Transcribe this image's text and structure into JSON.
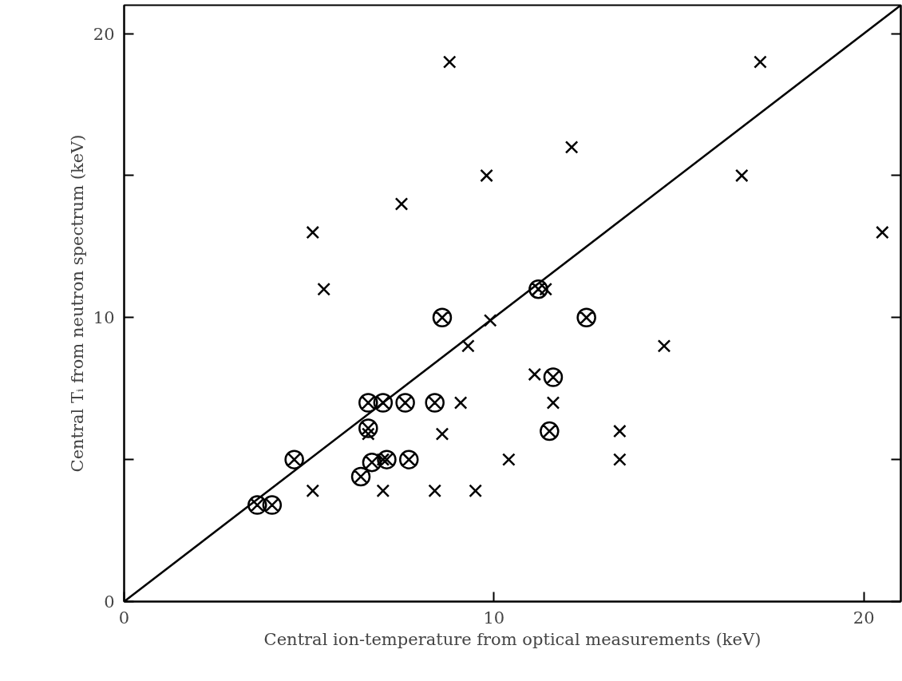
{
  "chart_data": {
    "type": "scatter",
    "xlabel": "Central ion-temperature from optical measurements (keV)",
    "ylabel": "Central Tᵢ from neutron spectrum (keV)",
    "xlim": [
      0,
      21
    ],
    "ylim": [
      0,
      21
    ],
    "xticks": [
      0,
      10,
      20
    ],
    "yticks": [
      0,
      {
        "value": 5,
        "label": null
      },
      10,
      {
        "value": 15,
        "label": null
      },
      20
    ],
    "grid": false,
    "series": [
      {
        "marker": "cross",
        "color": "#000000",
        "x": [
          5.1,
          5.4,
          7.5,
          8.8,
          9.8,
          12.1,
          17.2,
          16.7,
          20.5,
          11.4,
          9.9,
          9.3,
          14.6,
          11.1,
          11.6,
          13.4,
          10.4,
          13.4,
          9.1,
          6.6,
          8.6,
          7.0,
          5.1,
          7.0,
          8.4,
          9.5
        ],
        "values": [
          13,
          11,
          14,
          19,
          15,
          16,
          19,
          15,
          13,
          11,
          9.9,
          9,
          9,
          8,
          7,
          6,
          5,
          5,
          7,
          5.9,
          5.9,
          5,
          3.9,
          3.9,
          3.9,
          3.9
        ]
      },
      {
        "color": "#000000",
        "x": [
          11.2,
          8.6,
          12.5,
          11.6,
          11.5,
          6.6,
          7.0,
          7.6,
          8.4,
          6.6,
          4.6,
          6.7,
          7.1,
          7.7,
          6.4,
          3.6,
          4.0
        ],
        "values": [
          11,
          10,
          10,
          7.9,
          6,
          7,
          7,
          7,
          7,
          6.1,
          5,
          4.9,
          5,
          5,
          4.4,
          3.4,
          3.4
        ]
      },
      {
        "type": "line",
        "line_style": "solid",
        "color": "#000000",
        "x": [
          0,
          21
        ],
        "values": [
          0,
          21
        ]
      }
    ]
  }
}
